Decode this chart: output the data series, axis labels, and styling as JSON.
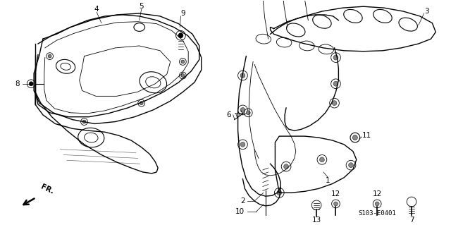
{
  "bg_color": "#ffffff",
  "fig_width": 6.4,
  "fig_height": 3.19,
  "dpi": 100,
  "diagram_code": "S103-E0401",
  "image_b64": ""
}
